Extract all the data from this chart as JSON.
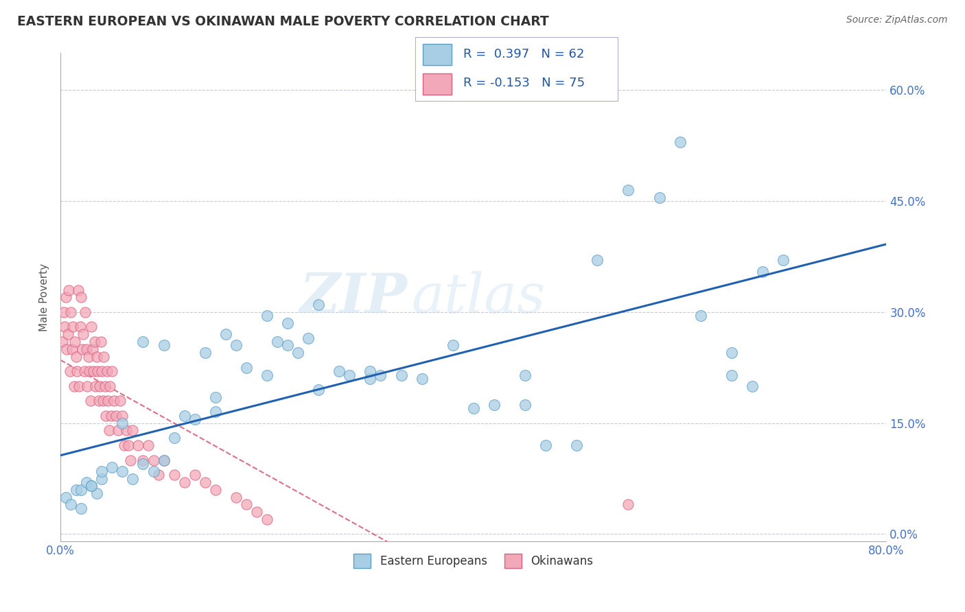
{
  "title": "EASTERN EUROPEAN VS OKINAWAN MALE POVERTY CORRELATION CHART",
  "source_text": "Source: ZipAtlas.com",
  "ylabel": "Male Poverty",
  "x_min": 0.0,
  "x_max": 0.8,
  "y_min": -0.01,
  "y_max": 0.65,
  "right_yticks": [
    0.0,
    0.15,
    0.3,
    0.45,
    0.6
  ],
  "right_ytick_labels": [
    "0.0%",
    "15.0%",
    "30.0%",
    "45.0%",
    "60.0%"
  ],
  "ee_color": "#A8CEE3",
  "ok_color": "#F2A8B8",
  "ee_edge_color": "#5B9EC9",
  "ok_edge_color": "#D96080",
  "line_color": "#2060B0",
  "ok_line_color": "#CC3355",
  "watermark_zip": "ZIP",
  "watermark_atlas": "atlas",
  "legend_R_ee": "R =  0.397",
  "legend_N_ee": "N = 62",
  "legend_R_ok": "R = -0.153",
  "legend_N_ok": "N = 75",
  "ee_R": 0.397,
  "ok_R": -0.153,
  "ee_x": [
    0.005,
    0.01,
    0.015,
    0.02,
    0.025,
    0.03,
    0.035,
    0.04,
    0.05,
    0.06,
    0.07,
    0.08,
    0.09,
    0.1,
    0.11,
    0.12,
    0.13,
    0.14,
    0.15,
    0.16,
    0.17,
    0.18,
    0.2,
    0.21,
    0.22,
    0.23,
    0.24,
    0.25,
    0.27,
    0.28,
    0.3,
    0.31,
    0.33,
    0.35,
    0.38,
    0.4,
    0.42,
    0.45,
    0.47,
    0.5,
    0.52,
    0.55,
    0.58,
    0.6,
    0.62,
    0.65,
    0.68,
    0.7,
    0.2,
    0.22,
    0.15,
    0.1,
    0.08,
    0.06,
    0.04,
    0.03,
    0.02,
    0.25,
    0.3,
    0.45,
    0.65,
    0.67
  ],
  "ee_y": [
    0.05,
    0.04,
    0.06,
    0.06,
    0.07,
    0.065,
    0.055,
    0.075,
    0.09,
    0.085,
    0.075,
    0.095,
    0.085,
    0.1,
    0.13,
    0.16,
    0.155,
    0.245,
    0.165,
    0.27,
    0.255,
    0.225,
    0.215,
    0.26,
    0.255,
    0.245,
    0.265,
    0.31,
    0.22,
    0.215,
    0.21,
    0.215,
    0.215,
    0.21,
    0.255,
    0.17,
    0.175,
    0.175,
    0.12,
    0.12,
    0.37,
    0.465,
    0.455,
    0.53,
    0.295,
    0.245,
    0.355,
    0.37,
    0.295,
    0.285,
    0.185,
    0.255,
    0.26,
    0.15,
    0.085,
    0.065,
    0.035,
    0.195,
    0.22,
    0.215,
    0.215,
    0.2
  ],
  "ok_x": [
    0.002,
    0.003,
    0.004,
    0.005,
    0.006,
    0.007,
    0.008,
    0.009,
    0.01,
    0.011,
    0.012,
    0.013,
    0.014,
    0.015,
    0.016,
    0.017,
    0.018,
    0.019,
    0.02,
    0.021,
    0.022,
    0.023,
    0.024,
    0.025,
    0.026,
    0.027,
    0.028,
    0.029,
    0.03,
    0.031,
    0.032,
    0.033,
    0.034,
    0.035,
    0.036,
    0.037,
    0.038,
    0.039,
    0.04,
    0.041,
    0.042,
    0.043,
    0.044,
    0.045,
    0.046,
    0.047,
    0.048,
    0.049,
    0.05,
    0.052,
    0.054,
    0.056,
    0.058,
    0.06,
    0.062,
    0.064,
    0.066,
    0.068,
    0.07,
    0.075,
    0.08,
    0.085,
    0.09,
    0.095,
    0.1,
    0.11,
    0.12,
    0.13,
    0.14,
    0.15,
    0.55,
    0.17,
    0.18,
    0.19,
    0.2
  ],
  "ok_y": [
    0.26,
    0.3,
    0.28,
    0.32,
    0.25,
    0.27,
    0.33,
    0.22,
    0.3,
    0.25,
    0.28,
    0.2,
    0.26,
    0.24,
    0.22,
    0.33,
    0.2,
    0.28,
    0.32,
    0.25,
    0.27,
    0.22,
    0.3,
    0.25,
    0.2,
    0.24,
    0.22,
    0.18,
    0.28,
    0.25,
    0.22,
    0.26,
    0.2,
    0.24,
    0.22,
    0.18,
    0.2,
    0.26,
    0.22,
    0.18,
    0.24,
    0.2,
    0.16,
    0.22,
    0.18,
    0.14,
    0.2,
    0.16,
    0.22,
    0.18,
    0.16,
    0.14,
    0.18,
    0.16,
    0.12,
    0.14,
    0.12,
    0.1,
    0.14,
    0.12,
    0.1,
    0.12,
    0.1,
    0.08,
    0.1,
    0.08,
    0.07,
    0.08,
    0.07,
    0.06,
    0.04,
    0.05,
    0.04,
    0.03,
    0.02
  ]
}
